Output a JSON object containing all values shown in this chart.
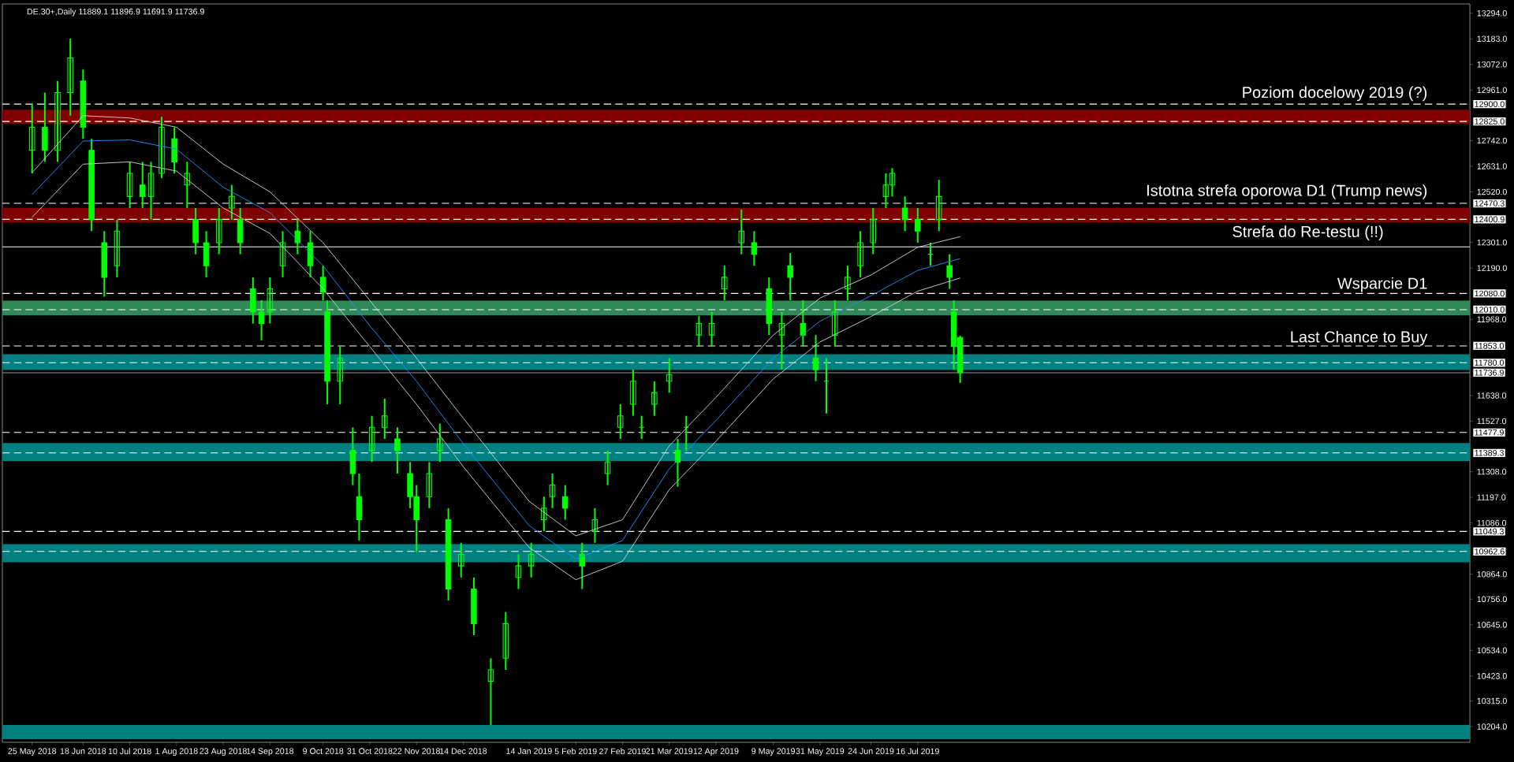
{
  "chart_data": {
    "type": "candlestick",
    "title": "DE.30+,Daily  11889.1 11896.9 11691.9 11736.9",
    "color": "#00ff00",
    "x": [
      "2018-05-25",
      "2018-05-31",
      "2018-06-06",
      "2018-06-12",
      "2018-06-18",
      "2018-06-22",
      "2018-06-28",
      "2018-07-04",
      "2018-07-10",
      "2018-07-16",
      "2018-07-20",
      "2018-07-25",
      "2018-07-31",
      "2018-08-06",
      "2018-08-10",
      "2018-08-15",
      "2018-08-21",
      "2018-08-27",
      "2018-08-31",
      "2018-09-06",
      "2018-09-10",
      "2018-09-14",
      "2018-09-20",
      "2018-09-27",
      "2018-10-03",
      "2018-10-09",
      "2018-10-11",
      "2018-10-17",
      "2018-10-23",
      "2018-10-26",
      "2018-11-01",
      "2018-11-07",
      "2018-11-13",
      "2018-11-19",
      "2018-11-22",
      "2018-11-28",
      "2018-12-03",
      "2018-12-07",
      "2018-12-13",
      "2018-12-19",
      "2018-12-27",
      "2019-01-03",
      "2019-01-09",
      "2019-01-15",
      "2019-01-21",
      "2019-01-25",
      "2019-01-31",
      "2019-02-08",
      "2019-02-14",
      "2019-02-20",
      "2019-02-26",
      "2019-03-04",
      "2019-03-08",
      "2019-03-14",
      "2019-03-21",
      "2019-03-25",
      "2019-03-29",
      "2019-04-04",
      "2019-04-10",
      "2019-04-16",
      "2019-04-24",
      "2019-04-30",
      "2019-05-07",
      "2019-05-13",
      "2019-05-17",
      "2019-05-23",
      "2019-05-29",
      "2019-06-03",
      "2019-06-07",
      "2019-06-13",
      "2019-06-19",
      "2019-06-25",
      "2019-07-01",
      "2019-07-04",
      "2019-07-10",
      "2019-07-16",
      "2019-07-22",
      "2019-07-26",
      "2019-07-31",
      "2019-08-02",
      "2019-08-05"
    ],
    "ohlc": [
      [
        12700,
        12900,
        12600,
        12800
      ],
      [
        12800,
        12950,
        12650,
        12700
      ],
      [
        12700,
        13000,
        12650,
        12950
      ],
      [
        12950,
        13183,
        12850,
        13100
      ],
      [
        13000,
        13050,
        12750,
        12800
      ],
      [
        12700,
        12750,
        12350,
        12400
      ],
      [
        12300,
        12350,
        12066,
        12150
      ],
      [
        12200,
        12400,
        12150,
        12350
      ],
      [
        12500,
        12650,
        12450,
        12600
      ],
      [
        12550,
        12650,
        12450,
        12500
      ],
      [
        12500,
        12650,
        12400,
        12600
      ],
      [
        12600,
        12845,
        12580,
        12800
      ],
      [
        12750,
        12800,
        12600,
        12650
      ],
      [
        12550,
        12650,
        12450,
        12600
      ],
      [
        12400,
        12450,
        12250,
        12300
      ],
      [
        12300,
        12350,
        12150,
        12200
      ],
      [
        12300,
        12450,
        12250,
        12400
      ],
      [
        12450,
        12550,
        12400,
        12500
      ],
      [
        12400,
        12450,
        12250,
        12300
      ],
      [
        12100,
        12150,
        11950,
        12000
      ],
      [
        12000,
        12050,
        11877,
        11950
      ],
      [
        12000,
        12150,
        11950,
        12100
      ],
      [
        12200,
        12350,
        12150,
        12300
      ],
      [
        12350,
        12403,
        12250,
        12300
      ],
      [
        12300,
        12350,
        12150,
        12200
      ],
      [
        12150,
        12200,
        12050,
        12086
      ],
      [
        12000,
        12050,
        11600,
        11700
      ],
      [
        11700,
        11850,
        11600,
        11800
      ],
      [
        11400,
        11500,
        11250,
        11300
      ],
      [
        11200,
        11300,
        11010,
        11100
      ],
      [
        11400,
        11550,
        11350,
        11500
      ],
      [
        11500,
        11624,
        11450,
        11550
      ],
      [
        11450,
        11500,
        11300,
        11400
      ],
      [
        11300,
        11350,
        11150,
        11200
      ],
      [
        11200,
        11250,
        10960,
        11100
      ],
      [
        11200,
        11350,
        11150,
        11300
      ],
      [
        11400,
        11516,
        11350,
        11450
      ],
      [
        11100,
        11150,
        10750,
        10800
      ],
      [
        10900,
        11000,
        10850,
        10950
      ],
      [
        10800,
        10850,
        10600,
        10650
      ],
      [
        10400,
        10500,
        10211,
        10450
      ],
      [
        10500,
        10700,
        10450,
        10650
      ],
      [
        10850,
        10950,
        10800,
        10900
      ],
      [
        10900,
        11000,
        10850,
        10950
      ],
      [
        11100,
        11200,
        11050,
        11150
      ],
      [
        11200,
        11300,
        11150,
        11250
      ],
      [
        11200,
        11250,
        11100,
        11150
      ],
      [
        10950,
        11000,
        10800,
        10900
      ],
      [
        11050,
        11150,
        11000,
        11100
      ],
      [
        11300,
        11400,
        11250,
        11350
      ],
      [
        11500,
        11600,
        11450,
        11550
      ],
      [
        11600,
        11750,
        11550,
        11700
      ],
      [
        11500,
        11550,
        11450,
        11500
      ],
      [
        11600,
        11700,
        11550,
        11650
      ],
      [
        11700,
        11800,
        11650,
        11729
      ],
      [
        11400,
        11450,
        11243,
        11350
      ],
      [
        11500,
        11550,
        11400,
        11500
      ],
      [
        11900,
        11982,
        11850,
        11950
      ],
      [
        11900,
        12000,
        11850,
        11950
      ],
      [
        12100,
        12200,
        12050,
        12150
      ],
      [
        12300,
        12444,
        12250,
        12350
      ],
      [
        12300,
        12350,
        12200,
        12250
      ],
      [
        12100,
        12150,
        11900,
        11950
      ],
      [
        11900,
        12000,
        11750,
        11950
      ],
      [
        12200,
        12255,
        12050,
        12150
      ],
      [
        11950,
        12050,
        11850,
        11900
      ],
      [
        11800,
        11900,
        11700,
        11750
      ],
      [
        11700,
        11800,
        11560,
        11700
      ],
      [
        11900,
        12050,
        11850,
        12000
      ],
      [
        12100,
        12200,
        12050,
        12150
      ],
      [
        12200,
        12350,
        12150,
        12300
      ],
      [
        12300,
        12450,
        12250,
        12400
      ],
      [
        12500,
        12600,
        12450,
        12550
      ],
      [
        12550,
        12623,
        12500,
        12600
      ],
      [
        12450,
        12500,
        12350,
        12400
      ],
      [
        12400,
        12450,
        12300,
        12350
      ],
      [
        12250,
        12300,
        12200,
        12250
      ],
      [
        12400,
        12572,
        12350,
        12500
      ],
      [
        12200,
        12250,
        12100,
        12150
      ],
      [
        12000,
        12050,
        11750,
        11850
      ],
      [
        11889.1,
        11896.9,
        11691.9,
        11736.9
      ]
    ],
    "series": [
      {
        "type": "line",
        "color": "#d0d0d0",
        "x": [
          "2018-05-25",
          "2018-06-18",
          "2018-07-10",
          "2018-08-01",
          "2018-08-23",
          "2018-09-14",
          "2018-10-09",
          "2018-10-31",
          "2018-11-22",
          "2018-12-14",
          "2019-01-14",
          "2019-02-05",
          "2019-02-27",
          "2019-03-21",
          "2019-04-12",
          "2019-05-09",
          "2019-05-31",
          "2019-06-24",
          "2019-07-16",
          "2019-08-05"
        ],
        "values": [
          12603,
          12850,
          12840,
          12800,
          12640,
          12520,
          12300,
          12050,
          11800,
          11540,
          11180,
          11030,
          11100,
          11420,
          11630,
          11900,
          12060,
          12160,
          12280,
          12326
        ]
      },
      {
        "type": "line",
        "color": "#1e90ff",
        "x": [
          "2018-05-25",
          "2018-06-18",
          "2018-07-10",
          "2018-08-01",
          "2018-08-23",
          "2018-09-14",
          "2018-10-09",
          "2018-10-31",
          "2018-11-22",
          "2018-12-14",
          "2019-01-14",
          "2019-02-05",
          "2019-02-27",
          "2019-03-21",
          "2019-04-12",
          "2019-05-09",
          "2019-05-31",
          "2019-06-24",
          "2019-07-16",
          "2019-08-05"
        ],
        "values": [
          12508,
          12740,
          12745,
          12705,
          12540,
          12430,
          12200,
          11940,
          11700,
          11430,
          11075,
          10930,
          11010,
          11320,
          11530,
          11800,
          11960,
          12070,
          12180,
          12231
        ]
      },
      {
        "type": "line",
        "color": "#d0d0d0",
        "x": [
          "2018-05-25",
          "2018-06-18",
          "2018-07-10",
          "2018-08-01",
          "2018-08-23",
          "2018-09-14",
          "2018-10-09",
          "2018-10-31",
          "2018-11-22",
          "2018-12-14",
          "2019-01-14",
          "2019-02-05",
          "2019-02-27",
          "2019-03-21",
          "2019-04-12",
          "2019-05-09",
          "2019-05-31",
          "2019-06-24",
          "2019-07-16",
          "2019-08-05"
        ],
        "values": [
          12410,
          12640,
          12650,
          12610,
          12450,
          12340,
          12100,
          11850,
          11600,
          11330,
          10980,
          10840,
          10920,
          11230,
          11440,
          11710,
          11870,
          11980,
          12090,
          12147
        ]
      }
    ],
    "bands": [
      {
        "axis": "y",
        "from": 12815,
        "to": 12876,
        "color": "#800000",
        "label": "Poziom docelowy 2019 (?)"
      },
      {
        "axis": "y",
        "from": 12387,
        "to": 12451,
        "color": "#800000",
        "label": "Istotna strefa oporowa D1 (Trump news)"
      },
      {
        "axis": "y",
        "from": 11985,
        "to": 12049,
        "color": "#2e8b57",
        "label": "Wsparcie D1"
      },
      {
        "axis": "y",
        "from": 11749,
        "to": 11817,
        "color": "#008080",
        "label": "Last Chance to Buy"
      },
      {
        "axis": "y",
        "from": 11354,
        "to": 11432,
        "color": "#008080"
      },
      {
        "axis": "y",
        "from": 10916,
        "to": 10994,
        "color": "#008080"
      },
      {
        "axis": "y",
        "from": 10150,
        "to": 10211,
        "color": "#008080"
      }
    ],
    "ref_lines": [
      {
        "axis": "y",
        "value": 12900,
        "label": "12900.0",
        "color": "#ffffff",
        "line_style": "dashed"
      },
      {
        "axis": "y",
        "value": 12825,
        "label": "12825.0",
        "color": "#ffffff",
        "line_style": "dashed"
      },
      {
        "axis": "y",
        "value": 12470.3,
        "label": "12470.3",
        "color": "#ffffff",
        "line_style": "dashed"
      },
      {
        "axis": "y",
        "value": 12400.9,
        "label": "12400.9",
        "color": "#ffffff",
        "line_style": "dashed"
      },
      {
        "axis": "y",
        "value": 12080,
        "label": "12080.0",
        "color": "#ffffff",
        "line_style": "dashed"
      },
      {
        "axis": "y",
        "value": 12010,
        "label": "12010.0",
        "color": "#ffffff",
        "line_style": "dashed"
      },
      {
        "axis": "y",
        "value": 11853,
        "label": "11853.0",
        "color": "#ffffff",
        "line_style": "dashed"
      },
      {
        "axis": "y",
        "value": 11780,
        "label": "11780.0",
        "color": "#ffffff",
        "line_style": "dashed"
      },
      {
        "axis": "y",
        "value": 11477.9,
        "label": "11477.9",
        "color": "#ffffff",
        "line_style": "dashed"
      },
      {
        "axis": "y",
        "value": 11389.3,
        "label": "11389.3",
        "color": "#ffffff",
        "line_style": "dashed"
      },
      {
        "axis": "y",
        "value": 11049.3,
        "label": "11049.3",
        "color": "#ffffff",
        "line_style": "dashed"
      },
      {
        "axis": "y",
        "value": 10962.6,
        "label": "10962.6",
        "color": "#ffffff",
        "line_style": "dashed"
      },
      {
        "axis": "y",
        "value": 11736.9,
        "label": "11736.9",
        "color": "#8c9ba8",
        "line_style": "solid"
      },
      {
        "axis": "y",
        "value": 12282,
        "color": "#ffffff",
        "line_style": "solid"
      }
    ],
    "annotations": [
      {
        "text": "Strefa do Re-testu (!!)",
        "x": "2020-02-21",
        "y": 12282
      }
    ],
    "xlim": [
      "2018-05-11",
      "2020-04-01"
    ],
    "ylim": [
      10136,
      13334
    ],
    "xticks": [
      {
        "value": "2018-05-25",
        "label": "25 May 2018"
      },
      {
        "value": "2018-06-18",
        "label": "18 Jun 2018"
      },
      {
        "value": "2018-07-10",
        "label": "10 Jul 2018"
      },
      {
        "value": "2018-08-01",
        "label": "1 Aug 2018"
      },
      {
        "value": "2018-08-23",
        "label": "23 Aug 2018"
      },
      {
        "value": "2018-09-14",
        "label": "14 Sep 2018"
      },
      {
        "value": "2018-10-09",
        "label": "9 Oct 2018"
      },
      {
        "value": "2018-10-31",
        "label": "31 Oct 2018"
      },
      {
        "value": "2018-11-22",
        "label": "22 Nov 2018"
      },
      {
        "value": "2018-12-14",
        "label": "14 Dec 2018"
      },
      {
        "value": "2019-01-14",
        "label": "14 Jan 2019"
      },
      {
        "value": "2019-02-05",
        "label": "5 Feb 2019"
      },
      {
        "value": "2019-02-27",
        "label": "27 Feb 2019"
      },
      {
        "value": "2019-03-21",
        "label": "21 Mar 2019"
      },
      {
        "value": "2019-04-12",
        "label": "12 Apr 2019"
      },
      {
        "value": "2019-05-09",
        "label": "9 May 2019"
      },
      {
        "value": "2019-05-31",
        "label": "31 May 2019"
      },
      {
        "value": "2019-06-24",
        "label": "24 Jun 2019"
      },
      {
        "value": "2019-07-16",
        "label": "16 Jul 2019"
      }
    ],
    "yticks": [
      {
        "value": 13294,
        "label": "13294.0"
      },
      {
        "value": 13183,
        "label": "13183.0"
      },
      {
        "value": 13072,
        "label": "13072.0"
      },
      {
        "value": 12961,
        "label": "12961.0"
      },
      {
        "value": 12742,
        "label": "12742.0"
      },
      {
        "value": 12631,
        "label": "12631.0"
      },
      {
        "value": 12520,
        "label": "12520.0"
      },
      {
        "value": 12301,
        "label": "12301.0"
      },
      {
        "value": 12190,
        "label": "12190.0"
      },
      {
        "value": 11968,
        "label": "11968.0"
      },
      {
        "value": 11638,
        "label": "11638.0"
      },
      {
        "value": 11527,
        "label": "11527.0"
      },
      {
        "value": 11308,
        "label": "11308.0"
      },
      {
        "value": 11197,
        "label": "11197.0"
      },
      {
        "value": 11086,
        "label": "11086.0"
      },
      {
        "value": 10864,
        "label": "10864.0"
      },
      {
        "value": 10756,
        "label": "10756.0"
      },
      {
        "value": 10645,
        "label": "10645.0"
      },
      {
        "value": 10534,
        "label": "10534.0"
      },
      {
        "value": 10423,
        "label": "10423.0"
      },
      {
        "value": 10315,
        "label": "10315.0"
      },
      {
        "value": 10204,
        "label": "10204.0"
      }
    ]
  }
}
